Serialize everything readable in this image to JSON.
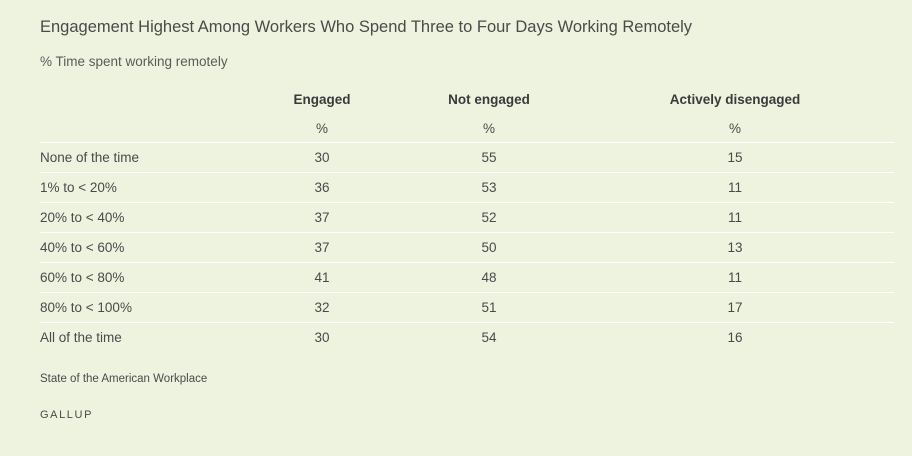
{
  "title": "Engagement Highest Among Workers Who Spend Three to Four Days Working Remotely",
  "subtitle": "% Time spent working remotely",
  "source": "State of the American Workplace",
  "brand": "GALLUP",
  "chart_data": {
    "type": "table",
    "columns": [
      "",
      "Engaged",
      "Not engaged",
      "Actively disengaged"
    ],
    "units": [
      "",
      "%",
      "%",
      "%"
    ],
    "rows": [
      [
        "None of the time",
        "30",
        "55",
        "15"
      ],
      [
        "1% to < 20%",
        "36",
        "53",
        "11"
      ],
      [
        "20% to < 40%",
        "37",
        "52",
        "11"
      ],
      [
        "40% to < 60%",
        "37",
        "50",
        "13"
      ],
      [
        "60% to < 80%",
        "41",
        "48",
        "11"
      ],
      [
        "80% to < 100%",
        "32",
        "51",
        "17"
      ],
      [
        "All of the time",
        "30",
        "54",
        "16"
      ]
    ]
  }
}
